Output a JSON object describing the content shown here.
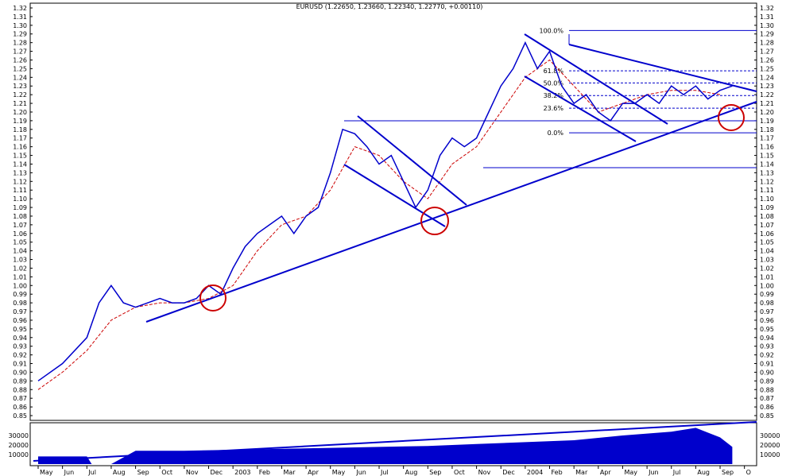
{
  "chart_data": {
    "type": "line",
    "symbol": "EURUSD",
    "title": "EURUSD (1.22650, 1.23660, 1.22340, 1.22770, +0.00110)",
    "ohlc": {
      "open": 1.2265,
      "high": 1.2366,
      "low": 1.2234,
      "close": 1.2277,
      "change": 0.0011
    },
    "price_axis": {
      "min": 0.85,
      "max": 1.32,
      "step": 0.01
    },
    "volume_axis": {
      "ticks": [
        10000,
        20000,
        30000
      ]
    },
    "x_labels": [
      "May",
      "Jun",
      "Jul",
      "Aug",
      "Sep",
      "Oct",
      "Nov",
      "Dec",
      "2003",
      "Feb",
      "Mar",
      "Apr",
      "May",
      "Jun",
      "Jul",
      "Aug",
      "Sep",
      "Oct",
      "Nov",
      "Dec",
      "2004",
      "Feb",
      "Mar",
      "Apr",
      "May",
      "Jun",
      "Jul",
      "Aug",
      "Sep",
      "O"
    ],
    "price_series": [
      [
        0,
        0.89
      ],
      [
        1,
        0.91
      ],
      [
        2,
        0.94
      ],
      [
        2.5,
        0.98
      ],
      [
        3,
        1.0
      ],
      [
        3.5,
        0.98
      ],
      [
        4,
        0.975
      ],
      [
        4.5,
        0.98
      ],
      [
        5,
        0.985
      ],
      [
        5.5,
        0.98
      ],
      [
        6,
        0.98
      ],
      [
        6.5,
        0.985
      ],
      [
        7,
        1.0
      ],
      [
        7.5,
        0.99
      ],
      [
        8,
        1.02
      ],
      [
        8.5,
        1.045
      ],
      [
        9,
        1.06
      ],
      [
        9.5,
        1.07
      ],
      [
        10,
        1.08
      ],
      [
        10.5,
        1.06
      ],
      [
        11,
        1.08
      ],
      [
        11.5,
        1.09
      ],
      [
        12,
        1.13
      ],
      [
        12.5,
        1.18
      ],
      [
        13,
        1.175
      ],
      [
        13.5,
        1.16
      ],
      [
        14,
        1.14
      ],
      [
        14.5,
        1.15
      ],
      [
        15,
        1.12
      ],
      [
        15.5,
        1.09
      ],
      [
        16,
        1.11
      ],
      [
        16.5,
        1.15
      ],
      [
        17,
        1.17
      ],
      [
        17.5,
        1.16
      ],
      [
        18,
        1.17
      ],
      [
        18.5,
        1.2
      ],
      [
        19,
        1.23
      ],
      [
        19.5,
        1.25
      ],
      [
        20,
        1.28
      ],
      [
        20.5,
        1.25
      ],
      [
        21,
        1.27
      ],
      [
        21.5,
        1.23
      ],
      [
        22,
        1.21
      ],
      [
        22.5,
        1.22
      ],
      [
        23,
        1.2
      ],
      [
        23.5,
        1.19
      ],
      [
        24,
        1.21
      ],
      [
        24.5,
        1.21
      ],
      [
        25,
        1.22
      ],
      [
        25.5,
        1.21
      ],
      [
        26,
        1.23
      ],
      [
        26.5,
        1.22
      ],
      [
        27,
        1.23
      ],
      [
        27.5,
        1.215
      ],
      [
        28,
        1.225
      ],
      [
        28.5,
        1.23
      ]
    ],
    "moving_average": [
      [
        0,
        0.88
      ],
      [
        1,
        0.9
      ],
      [
        2,
        0.925
      ],
      [
        3,
        0.96
      ],
      [
        4,
        0.975
      ],
      [
        5,
        0.98
      ],
      [
        6,
        0.98
      ],
      [
        7,
        0.985
      ],
      [
        8,
        1.0
      ],
      [
        9,
        1.04
      ],
      [
        10,
        1.07
      ],
      [
        11,
        1.08
      ],
      [
        12,
        1.11
      ],
      [
        13,
        1.16
      ],
      [
        14,
        1.15
      ],
      [
        15,
        1.12
      ],
      [
        16,
        1.1
      ],
      [
        17,
        1.14
      ],
      [
        18,
        1.16
      ],
      [
        19,
        1.2
      ],
      [
        20,
        1.24
      ],
      [
        21,
        1.26
      ],
      [
        22,
        1.23
      ],
      [
        23,
        1.2
      ],
      [
        24,
        1.21
      ],
      [
        25,
        1.22
      ],
      [
        26,
        1.225
      ],
      [
        27,
        1.225
      ],
      [
        28,
        1.22
      ]
    ],
    "volume_series": [
      [
        0,
        8000
      ],
      [
        2,
        8000
      ],
      [
        2.2,
        0
      ],
      [
        3,
        0
      ],
      [
        4,
        14000
      ],
      [
        6,
        14000
      ],
      [
        8,
        15000
      ],
      [
        10,
        16000
      ],
      [
        12,
        17000
      ],
      [
        14,
        18000
      ],
      [
        16,
        19000
      ],
      [
        18,
        21000
      ],
      [
        20,
        23000
      ],
      [
        22,
        25000
      ],
      [
        24,
        30000
      ],
      [
        26,
        34000
      ],
      [
        27,
        38000
      ],
      [
        28,
        28000
      ],
      [
        28.5,
        18000
      ]
    ],
    "fibonacci_levels": [
      {
        "label": "100.0%",
        "price": 1.294
      },
      {
        "label": "61.8%",
        "price": 1.2475
      },
      {
        "label": "50.0%",
        "price": 1.2335
      },
      {
        "label": "38.2%",
        "price": 1.219
      },
      {
        "label": "23.6%",
        "price": 1.2045
      },
      {
        "label": "0.0%",
        "price": 1.176
      }
    ],
    "colors": {
      "price": "#0000cc",
      "trendline": "#0000cc",
      "moving_average": "#cc0000",
      "highlight_circle": "#cc0000",
      "fib_line": "#0000cc",
      "grid": "#000000"
    }
  }
}
